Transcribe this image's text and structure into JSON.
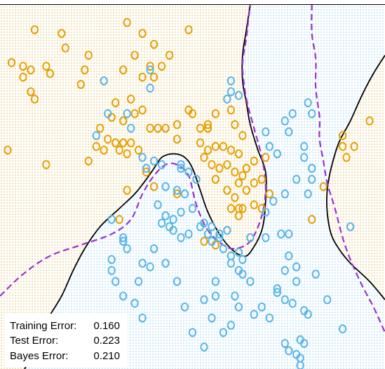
{
  "chart_data": {
    "type": "scatter",
    "title": "",
    "xlabel": "",
    "ylabel": "",
    "xlim": [
      0,
      1
    ],
    "ylim": [
      0,
      1
    ],
    "grid": false,
    "legend": "none",
    "colors": {
      "class_orange": "#e69f00",
      "class_blue": "#56b4e9",
      "bayes_boundary": "#9932cc",
      "model_boundary": "#000000",
      "frame": "#000000"
    },
    "series": [
      {
        "class": "orange",
        "points": [
          [
            0.09,
            0.93
          ],
          [
            0.16,
            0.92
          ],
          [
            0.33,
            0.95
          ],
          [
            0.37,
            0.92
          ],
          [
            0.49,
            0.93
          ],
          [
            0.17,
            0.88
          ],
          [
            0.23,
            0.86
          ],
          [
            0.4,
            0.89
          ],
          [
            0.35,
            0.86
          ],
          [
            0.39,
            0.83
          ],
          [
            0.03,
            0.84
          ],
          [
            0.06,
            0.83
          ],
          [
            0.08,
            0.82
          ],
          [
            0.12,
            0.83
          ],
          [
            0.13,
            0.81
          ],
          [
            0.06,
            0.8
          ],
          [
            0.22,
            0.82
          ],
          [
            0.32,
            0.82
          ],
          [
            0.37,
            0.8
          ],
          [
            0.4,
            0.8
          ],
          [
            0.42,
            0.83
          ],
          [
            0.44,
            0.86
          ],
          [
            0.21,
            0.78
          ],
          [
            0.08,
            0.76
          ],
          [
            0.09,
            0.74
          ],
          [
            0.34,
            0.74
          ],
          [
            0.3,
            0.73
          ],
          [
            0.35,
            0.7
          ],
          [
            0.37,
            0.71
          ],
          [
            0.29,
            0.69
          ],
          [
            0.32,
            0.68
          ],
          [
            0.39,
            0.66
          ],
          [
            0.41,
            0.66
          ],
          [
            0.43,
            0.66
          ],
          [
            0.46,
            0.67
          ],
          [
            0.49,
            0.71
          ],
          [
            0.5,
            0.7
          ],
          [
            0.52,
            0.66
          ],
          [
            0.54,
            0.67
          ],
          [
            0.56,
            0.7
          ],
          [
            0.54,
            0.66
          ],
          [
            0.6,
            0.71
          ],
          [
            0.61,
            0.67
          ],
          [
            0.63,
            0.64
          ],
          [
            0.26,
            0.66
          ],
          [
            0.28,
            0.63
          ],
          [
            0.3,
            0.62
          ],
          [
            0.32,
            0.62
          ],
          [
            0.34,
            0.62
          ],
          [
            0.25,
            0.61
          ],
          [
            0.27,
            0.6
          ],
          [
            0.31,
            0.6
          ],
          [
            0.33,
            0.59
          ],
          [
            0.36,
            0.6
          ],
          [
            0.46,
            0.63
          ],
          [
            0.52,
            0.62
          ],
          [
            0.54,
            0.6
          ],
          [
            0.56,
            0.61
          ],
          [
            0.58,
            0.61
          ],
          [
            0.6,
            0.6
          ],
          [
            0.62,
            0.59
          ],
          [
            0.53,
            0.58
          ],
          [
            0.55,
            0.56
          ],
          [
            0.57,
            0.55
          ],
          [
            0.59,
            0.56
          ],
          [
            0.61,
            0.54
          ],
          [
            0.63,
            0.53
          ],
          [
            0.56,
            0.52
          ],
          [
            0.59,
            0.49
          ],
          [
            0.61,
            0.47
          ],
          [
            0.62,
            0.51
          ],
          [
            0.64,
            0.49
          ],
          [
            0.66,
            0.45
          ],
          [
            0.68,
            0.44
          ],
          [
            0.6,
            0.44
          ],
          [
            0.66,
            0.51
          ],
          [
            0.64,
            0.55
          ],
          [
            0.66,
            0.57
          ],
          [
            0.69,
            0.58
          ],
          [
            0.68,
            0.52
          ],
          [
            0.7,
            0.48
          ],
          [
            0.46,
            0.48
          ],
          [
            0.33,
            0.49
          ],
          [
            0.23,
            0.57
          ],
          [
            0.38,
            0.54
          ],
          [
            0.4,
            0.5
          ],
          [
            0.02,
            0.6
          ],
          [
            0.12,
            0.56
          ],
          [
            0.89,
            0.64
          ],
          [
            0.89,
            0.61
          ],
          [
            0.9,
            0.58
          ],
          [
            0.92,
            0.61
          ],
          [
            0.96,
            0.68
          ],
          [
            0.84,
            0.5
          ],
          [
            0.63,
            0.44
          ],
          [
            0.62,
            0.42
          ],
          [
            0.62,
            0.44
          ],
          [
            0.53,
            0.35
          ],
          [
            0.56,
            0.34
          ],
          [
            0.81,
            0.41
          ],
          [
            0.31,
            0.41
          ]
        ]
      },
      {
        "class": "blue",
        "points": [
          [
            0.27,
            0.79
          ],
          [
            0.39,
            0.77
          ],
          [
            0.6,
            0.79
          ],
          [
            0.6,
            0.76
          ],
          [
            0.62,
            0.75
          ],
          [
            0.59,
            0.74
          ],
          [
            0.28,
            0.7
          ],
          [
            0.34,
            0.66
          ],
          [
            0.25,
            0.64
          ],
          [
            0.69,
            0.65
          ],
          [
            0.74,
            0.68
          ],
          [
            0.76,
            0.7
          ],
          [
            0.75,
            0.65
          ],
          [
            0.8,
            0.73
          ],
          [
            0.81,
            0.7
          ],
          [
            0.33,
            0.7
          ],
          [
            0.7,
            0.61
          ],
          [
            0.72,
            0.59
          ],
          [
            0.79,
            0.61
          ],
          [
            0.79,
            0.58
          ],
          [
            0.81,
            0.55
          ],
          [
            0.81,
            0.52
          ],
          [
            0.8,
            0.48
          ],
          [
            0.77,
            0.52
          ],
          [
            0.74,
            0.48
          ],
          [
            0.71,
            0.46
          ],
          [
            0.69,
            0.43
          ],
          [
            0.37,
            0.58
          ],
          [
            0.4,
            0.57
          ],
          [
            0.42,
            0.56
          ],
          [
            0.38,
            0.55
          ],
          [
            0.47,
            0.55
          ],
          [
            0.49,
            0.54
          ],
          [
            0.51,
            0.52
          ],
          [
            0.43,
            0.5
          ],
          [
            0.46,
            0.49
          ],
          [
            0.48,
            0.48
          ],
          [
            0.41,
            0.45
          ],
          [
            0.43,
            0.42
          ],
          [
            0.45,
            0.41
          ],
          [
            0.47,
            0.43
          ],
          [
            0.5,
            0.44
          ],
          [
            0.42,
            0.4
          ],
          [
            0.44,
            0.39
          ],
          [
            0.45,
            0.38
          ],
          [
            0.47,
            0.36
          ],
          [
            0.49,
            0.37
          ],
          [
            0.52,
            0.39
          ],
          [
            0.53,
            0.4
          ],
          [
            0.55,
            0.39
          ],
          [
            0.54,
            0.37
          ],
          [
            0.57,
            0.37
          ],
          [
            0.59,
            0.38
          ],
          [
            0.57,
            0.36
          ],
          [
            0.55,
            0.35
          ],
          [
            0.58,
            0.33
          ],
          [
            0.62,
            0.32
          ],
          [
            0.63,
            0.3
          ],
          [
            0.6,
            0.29
          ],
          [
            0.62,
            0.27
          ],
          [
            0.6,
            0.31
          ],
          [
            0.63,
            0.26
          ],
          [
            0.65,
            0.36
          ],
          [
            0.69,
            0.36
          ],
          [
            0.73,
            0.37
          ],
          [
            0.75,
            0.37
          ],
          [
            0.75,
            0.31
          ],
          [
            0.74,
            0.27
          ],
          [
            0.77,
            0.28
          ],
          [
            0.77,
            0.24
          ],
          [
            0.72,
            0.22
          ],
          [
            0.72,
            0.21
          ],
          [
            0.74,
            0.19
          ],
          [
            0.76,
            0.18
          ],
          [
            0.79,
            0.16
          ],
          [
            0.8,
            0.15
          ],
          [
            0.68,
            0.17
          ],
          [
            0.66,
            0.15
          ],
          [
            0.61,
            0.2
          ],
          [
            0.62,
            0.17
          ],
          [
            0.56,
            0.24
          ],
          [
            0.56,
            0.2
          ],
          [
            0.53,
            0.19
          ],
          [
            0.55,
            0.14
          ],
          [
            0.6,
            0.12
          ],
          [
            0.58,
            0.1
          ],
          [
            0.5,
            0.1
          ],
          [
            0.48,
            0.17
          ],
          [
            0.46,
            0.24
          ],
          [
            0.43,
            0.29
          ],
          [
            0.4,
            0.33
          ],
          [
            0.37,
            0.29
          ],
          [
            0.33,
            0.33
          ],
          [
            0.32,
            0.35
          ],
          [
            0.29,
            0.41
          ],
          [
            0.32,
            0.36
          ],
          [
            0.29,
            0.3
          ],
          [
            0.3,
            0.24
          ],
          [
            0.36,
            0.24
          ],
          [
            0.39,
            0.28
          ],
          [
            0.35,
            0.18
          ],
          [
            0.37,
            0.14
          ],
          [
            0.29,
            0.27
          ],
          [
            0.32,
            0.2
          ],
          [
            0.65,
            0.24
          ],
          [
            0.7,
            0.14
          ],
          [
            0.82,
            0.26
          ],
          [
            0.53,
            0.06
          ],
          [
            0.75,
            0.05
          ],
          [
            0.77,
            0.04
          ],
          [
            0.78,
            0.03
          ],
          [
            0.78,
            0.01
          ],
          [
            0.74,
            0.07
          ],
          [
            0.78,
            0.08
          ],
          [
            0.79,
            0.07
          ],
          [
            0.89,
            0.11
          ],
          [
            0.85,
            0.19
          ],
          [
            0.91,
            0.39
          ],
          [
            0.39,
            0.82
          ],
          [
            0.47,
            0.56
          ]
        ]
      }
    ],
    "boundaries": [
      {
        "kind": "model",
        "style": "solid",
        "paths": [
          [
            [
              0.06,
              -0.01
            ],
            [
              0.09,
              0.06
            ],
            [
              0.12,
              0.13
            ],
            [
              0.16,
              0.2
            ],
            [
              0.19,
              0.27
            ],
            [
              0.22,
              0.33
            ],
            [
              0.26,
              0.39
            ],
            [
              0.31,
              0.44
            ],
            [
              0.35,
              0.48
            ],
            [
              0.38,
              0.52
            ],
            [
              0.4,
              0.55
            ],
            [
              0.42,
              0.58
            ],
            [
              0.45,
              0.59
            ],
            [
              0.48,
              0.58
            ],
            [
              0.5,
              0.55
            ],
            [
              0.52,
              0.49
            ],
            [
              0.54,
              0.43
            ],
            [
              0.57,
              0.37
            ],
            [
              0.6,
              0.33
            ],
            [
              0.63,
              0.31
            ],
            [
              0.65,
              0.32
            ],
            [
              0.68,
              0.38
            ],
            [
              0.69,
              0.46
            ],
            [
              0.69,
              0.54
            ],
            [
              0.67,
              0.6
            ],
            [
              0.65,
              0.67
            ],
            [
              0.64,
              0.73
            ],
            [
              0.63,
              0.79
            ],
            [
              0.63,
              0.86
            ],
            [
              0.64,
              0.93
            ],
            [
              0.65,
              1.0
            ]
          ],
          [
            [
              1.0,
              0.19
            ],
            [
              0.96,
              0.24
            ],
            [
              0.91,
              0.29
            ],
            [
              0.88,
              0.33
            ],
            [
              0.86,
              0.37
            ],
            [
              0.85,
              0.43
            ],
            [
              0.85,
              0.49
            ],
            [
              0.86,
              0.55
            ],
            [
              0.88,
              0.62
            ],
            [
              0.91,
              0.68
            ],
            [
              0.94,
              0.75
            ],
            [
              0.97,
              0.81
            ],
            [
              1.0,
              0.86
            ]
          ]
        ]
      },
      {
        "kind": "bayes",
        "style": "dashed",
        "paths": [
          [
            [
              0.0,
              0.2
            ],
            [
              0.06,
              0.26
            ],
            [
              0.13,
              0.31
            ],
            [
              0.21,
              0.34
            ],
            [
              0.29,
              0.37
            ],
            [
              0.34,
              0.41
            ],
            [
              0.37,
              0.48
            ],
            [
              0.4,
              0.53
            ],
            [
              0.43,
              0.56
            ],
            [
              0.46,
              0.56
            ],
            [
              0.49,
              0.53
            ],
            [
              0.51,
              0.45
            ],
            [
              0.54,
              0.38
            ],
            [
              0.58,
              0.34
            ],
            [
              0.61,
              0.33
            ],
            [
              0.65,
              0.35
            ],
            [
              0.68,
              0.42
            ],
            [
              0.69,
              0.5
            ],
            [
              0.68,
              0.58
            ],
            [
              0.66,
              0.66
            ],
            [
              0.64,
              0.74
            ],
            [
              0.63,
              0.83
            ],
            [
              0.64,
              0.91
            ],
            [
              0.65,
              1.0
            ]
          ],
          [
            [
              0.81,
              1.0
            ],
            [
              0.81,
              0.92
            ],
            [
              0.82,
              0.85
            ],
            [
              0.82,
              0.77
            ],
            [
              0.83,
              0.69
            ],
            [
              0.83,
              0.63
            ],
            [
              0.84,
              0.57
            ],
            [
              0.85,
              0.51
            ],
            [
              0.87,
              0.44
            ],
            [
              0.89,
              0.36
            ],
            [
              0.91,
              0.3
            ],
            [
              0.94,
              0.23
            ],
            [
              0.97,
              0.17
            ],
            [
              1.0,
              0.1
            ]
          ]
        ]
      }
    ]
  },
  "stats": [
    {
      "label": "Training Error:",
      "value": "0.160"
    },
    {
      "label": "Test Error:",
      "value": "0.223"
    },
    {
      "label": "Bayes Error:",
      "value": "0.210"
    }
  ]
}
